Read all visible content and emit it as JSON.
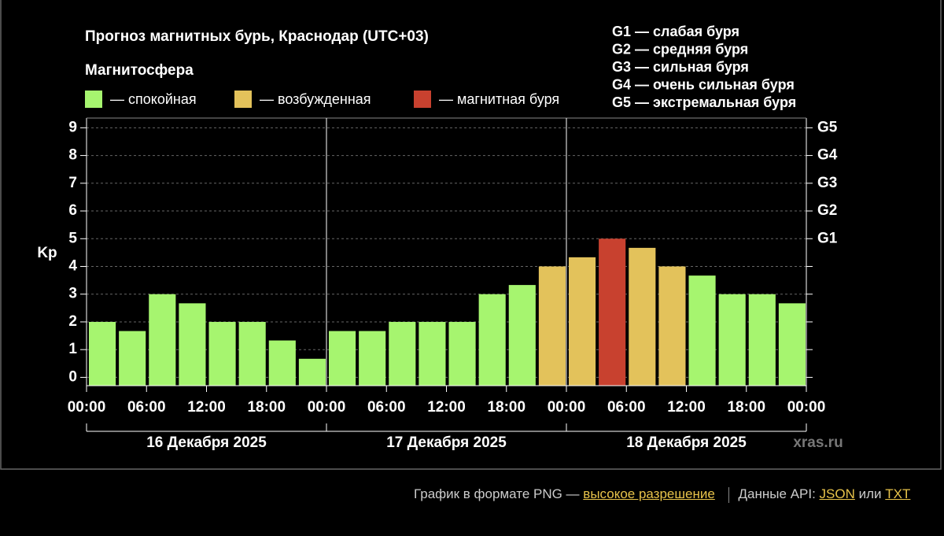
{
  "chart_data": {
    "type": "bar",
    "title": "Прогноз магнитных бурь, Краснодар (UTC+03)",
    "legend_title": "Магнитосфера",
    "legend": [
      {
        "name": "— спокойная",
        "color": "#a6f56f"
      },
      {
        "name": "— возбужденная",
        "color": "#e3c25b"
      },
      {
        "name": "— магнитная буря",
        "color": "#c8412f"
      }
    ],
    "storm_levels": [
      "G1 — слабая буря",
      "G2 — средняя буря",
      "G3 — сильная буря",
      "G4 — очень сильная буря",
      "G5 — экстремальная буря"
    ],
    "y_label": "Kp",
    "x": [
      0,
      3,
      6,
      9,
      12,
      15,
      18,
      21,
      24,
      27,
      30,
      33,
      36,
      39,
      42,
      45,
      48,
      51,
      54,
      57,
      60,
      63,
      66,
      69
    ],
    "values": [
      2,
      1.67,
      3,
      2.67,
      2,
      2,
      1.33,
      0.67,
      1.67,
      1.67,
      2,
      2,
      2,
      3,
      3.33,
      4,
      4.33,
      5,
      4.67,
      4,
      3.67,
      3,
      3,
      2.67
    ],
    "colors": [
      "#a6f56f",
      "#a6f56f",
      "#a6f56f",
      "#a6f56f",
      "#a6f56f",
      "#a6f56f",
      "#a6f56f",
      "#a6f56f",
      "#a6f56f",
      "#a6f56f",
      "#a6f56f",
      "#a6f56f",
      "#a6f56f",
      "#a6f56f",
      "#a6f56f",
      "#e3c25b",
      "#e3c25b",
      "#c8412f",
      "#e3c25b",
      "#e3c25b",
      "#a6f56f",
      "#a6f56f",
      "#a6f56f",
      "#a6f56f"
    ],
    "bar_width": 3,
    "xlim": [
      0,
      72
    ],
    "xticks": [
      {
        "value": 0,
        "label": "00:00"
      },
      {
        "value": 6,
        "label": "06:00"
      },
      {
        "value": 12,
        "label": "12:00"
      },
      {
        "value": 18,
        "label": "18:00"
      },
      {
        "value": 24,
        "label": "00:00"
      },
      {
        "value": 30,
        "label": "06:00"
      },
      {
        "value": 36,
        "label": "12:00"
      },
      {
        "value": 42,
        "label": "18:00"
      },
      {
        "value": 48,
        "label": "00:00"
      },
      {
        "value": 54,
        "label": "06:00"
      },
      {
        "value": 60,
        "label": "12:00"
      },
      {
        "value": 66,
        "label": "18:00"
      },
      {
        "value": 72,
        "label": "00:00"
      }
    ],
    "day_boundaries": [
      0,
      24,
      48,
      72
    ],
    "days": [
      "16 Декабря 2025",
      "17 Декабря 2025",
      "18 Декабря 2025"
    ],
    "ylim": [
      -0.3,
      9.35
    ],
    "yticks": [
      0,
      1,
      2,
      3,
      4,
      5,
      6,
      7,
      8,
      9
    ],
    "y2ticks": [
      {
        "value": 5,
        "label": "G1"
      },
      {
        "value": 6,
        "label": "G2"
      },
      {
        "value": 7,
        "label": "G3"
      },
      {
        "value": 8,
        "label": "G4"
      },
      {
        "value": 9,
        "label": "G5"
      }
    ],
    "grid": true,
    "watermark": "xras.ru"
  },
  "footer": {
    "text1": "График в формате PNG —",
    "link1": "высокое разрешение",
    "text2": "Данные API:",
    "link2": "JSON",
    "text3": "или",
    "link3": "TXT"
  }
}
